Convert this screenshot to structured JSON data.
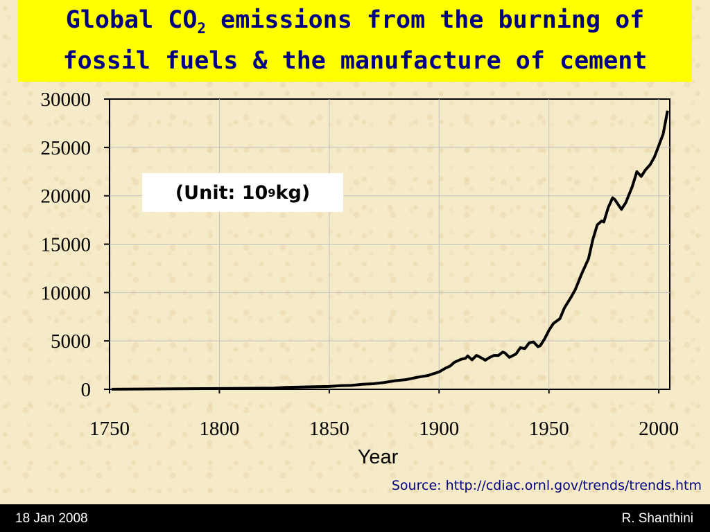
{
  "slide": {
    "title_pre": "Global CO",
    "title_sub": "2",
    "title_post": " emissions from the burning of",
    "title_line2": "fossil fuels & the manufacture of cement",
    "unit_pre": "(Unit: 10",
    "unit_sup": "9",
    "unit_post": " kg)",
    "source": "Source: http://cdiac.ornl.gov/trends/trends.htm",
    "footer_date": "18 Jan 2008",
    "footer_author": "R. Shanthini",
    "colors": {
      "title_bg": "#ffff00",
      "title_text": "#000080",
      "line": "#000000",
      "footer_bg": "#000000"
    }
  },
  "chart_data": {
    "type": "line",
    "xlabel": "Year",
    "ylabel": "",
    "xlim": [
      1750,
      2005
    ],
    "ylim": [
      0,
      30000
    ],
    "xticks": [
      "1750",
      "1800",
      "1850",
      "1900",
      "1950",
      "2000"
    ],
    "yticks": [
      "30000",
      "25000",
      "20000",
      "15000",
      "10000",
      "5000",
      "0"
    ],
    "grid": true,
    "series": [
      {
        "x": [
          1751,
          1800,
          1825,
          1830,
          1840,
          1850,
          1855,
          1860,
          1865,
          1870,
          1875,
          1880,
          1885,
          1890,
          1895,
          1900,
          1903,
          1905,
          1907,
          1910,
          1912,
          1913,
          1915,
          1917,
          1918,
          1920,
          1921,
          1923,
          1925,
          1927,
          1929,
          1930,
          1932,
          1935,
          1937,
          1939,
          1941,
          1943,
          1945,
          1946,
          1948,
          1950,
          1952,
          1955,
          1957,
          1960,
          1962,
          1965,
          1968,
          1970,
          1972,
          1974,
          1975,
          1977,
          1979,
          1980,
          1983,
          1985,
          1988,
          1990,
          1992,
          1994,
          1996,
          1998,
          2000,
          2002,
          2004
        ],
        "values": [
          10,
          80,
          120,
          200,
          250,
          290,
          380,
          400,
          520,
          570,
          700,
          890,
          1000,
          1240,
          1430,
          1800,
          2200,
          2400,
          2800,
          3100,
          3200,
          3450,
          3050,
          3500,
          3400,
          3150,
          3000,
          3300,
          3500,
          3500,
          3850,
          3750,
          3300,
          3650,
          4300,
          4200,
          4800,
          4900,
          4400,
          4500,
          5200,
          6100,
          6800,
          7300,
          8400,
          9500,
          10300,
          12000,
          13500,
          15500,
          17000,
          17400,
          17300,
          18800,
          19800,
          19600,
          18600,
          19300,
          21000,
          22500,
          22000,
          22700,
          23200,
          24000,
          25200,
          26400,
          28800
        ]
      }
    ]
  }
}
